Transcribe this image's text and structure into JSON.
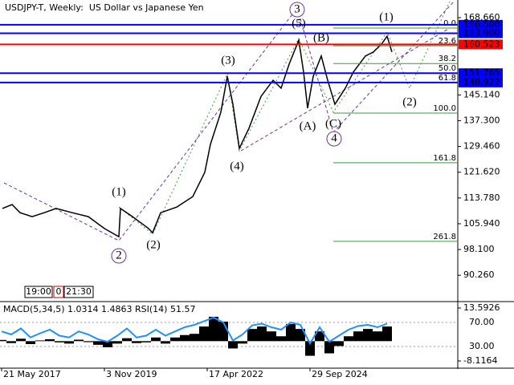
{
  "chart_data": [
    {
      "type": "line",
      "title": "USDJPY-T, Weekly:  US Dollar vs Japanese Yen",
      "x": [
        1,
        13,
        23,
        38,
        53,
        68,
        88,
        108,
        128,
        146,
        148,
        163,
        183,
        188,
        198,
        218,
        238,
        253,
        260,
        273,
        281,
        288,
        296,
        308,
        323,
        338,
        348,
        358,
        370,
        376,
        381,
        388,
        398,
        406,
        415,
        428,
        438,
        453,
        463,
        473,
        480,
        486
      ],
      "series": [
        {
          "color": "#000000",
          "values": [
            110.6,
            111.8,
            109.3,
            108.1,
            109.3,
            110.6,
            109.3,
            108.1,
            104.5,
            102.0,
            110.6,
            108.1,
            104.5,
            103.2,
            109.3,
            111.0,
            114.2,
            121.6,
            130.1,
            139.9,
            150.8,
            142.3,
            128.9,
            135.0,
            144.7,
            149.6,
            147.2,
            154.5,
            161.8,
            152.1,
            141.1,
            150.8,
            157.0,
            149.6,
            142.3,
            147.2,
            152.1,
            157.0,
            158.2,
            160.6,
            163.0,
            158.2
          ]
        }
      ],
      "xlim": [
        -2,
        568
      ],
      "ylim": [
        82.5,
        173.54
      ],
      "yticks": [
        {
          "value": 168.66,
          "label": "168.660"
        },
        {
          "value": 145.14,
          "label": "145.140"
        },
        {
          "value": 137.3,
          "label": "137.300"
        },
        {
          "value": 129.46,
          "label": "129.460"
        },
        {
          "value": 121.62,
          "label": "121.620"
        },
        {
          "value": 113.78,
          "label": "113.780"
        },
        {
          "value": 105.94,
          "label": "105.940"
        },
        {
          "value": 98.1,
          "label": "98.100"
        },
        {
          "value": 90.26,
          "label": "90.260"
        }
      ],
      "levels": [
        {
          "value": 166.5,
          "label": "166.500",
          "color": "#0000ff"
        },
        {
          "value": 163.9,
          "label": "163.900",
          "color": "#0000ff"
        },
        {
          "value": 160.523,
          "label": "160.523",
          "color": "#ff0000"
        },
        {
          "value": 151.765,
          "label": "151.765",
          "color": "#0000ff"
        },
        {
          "value": 148.922,
          "label": "148.922",
          "color": "#0000ff"
        }
      ],
      "fib_levels": [
        {
          "name": "0.0",
          "value": 165.5
        },
        {
          "name": "23.6",
          "value": 160.1
        },
        {
          "name": "38.2",
          "value": 154.7
        },
        {
          "name": "50.0",
          "value": 151.8
        },
        {
          "name": "61.8",
          "value": 148.9
        },
        {
          "name": "100.0",
          "value": 139.6
        },
        {
          "name": "161.8",
          "value": 124.5
        },
        {
          "name": "261.8",
          "value": 100.6
        }
      ],
      "fib_color": "#3c9a3c",
      "wave_labels": [
        {
          "text": "3",
          "style": "circle"
        },
        {
          "text": "(5)",
          "style": "plain"
        },
        {
          "text": "(1)",
          "style": "plain"
        },
        {
          "text": "(B)",
          "style": "plain"
        },
        {
          "text": "(3)",
          "style": "plain"
        },
        {
          "text": "(A)",
          "style": "plain"
        },
        {
          "text": "(C)",
          "style": "plain"
        },
        {
          "text": "4",
          "style": "circle"
        },
        {
          "text": "(4)",
          "style": "plain"
        },
        {
          "text": "(1)",
          "style": "plain"
        },
        {
          "text": "2",
          "style": "circle"
        },
        {
          "text": "(2)",
          "style": "plain"
        },
        {
          "text": "(2)",
          "style": "plain"
        }
      ],
      "time_boxes": [
        "19:00",
        "0",
        "21:30"
      ]
    },
    {
      "type": "line",
      "title": "MACD(5,34,5) 1.0314 1.4863 RSI(14) 51.57",
      "x": [
        0,
        12,
        24,
        36,
        48,
        60,
        72,
        84,
        96,
        108,
        120,
        132,
        144,
        156,
        168,
        180,
        192,
        204,
        216,
        228,
        240,
        252,
        264,
        276,
        288,
        300,
        312,
        324,
        336,
        348,
        360,
        372,
        384,
        396,
        408,
        420,
        432,
        444,
        456,
        468,
        480
      ],
      "series": [
        {
          "type": "bar",
          "color": "#000000",
          "values": [
            0.5,
            -0.8,
            1.0,
            -1.2,
            0.3,
            0.8,
            -0.5,
            -1.0,
            0.6,
            -0.4,
            -1.5,
            -2.5,
            -1.0,
            1.2,
            -0.8,
            -0.5,
            1.5,
            -1.0,
            1.5,
            2.5,
            3,
            6,
            10,
            8,
            -3,
            -1,
            5,
            6,
            4,
            2,
            7,
            5,
            -6,
            4,
            -5,
            -2,
            2,
            4,
            5,
            4,
            6
          ]
        },
        {
          "type": "line",
          "axis": "y2",
          "color": "#1e90ff",
          "values": [
            55,
            50,
            60,
            45,
            52,
            58,
            48,
            45,
            55,
            50,
            42,
            38,
            48,
            60,
            45,
            48,
            58,
            48,
            55,
            62,
            66,
            72,
            78,
            70,
            40,
            50,
            65,
            68,
            62,
            58,
            70,
            66,
            35,
            62,
            38,
            48,
            58,
            64,
            66,
            62,
            68
          ]
        }
      ],
      "xlim": [
        -2,
        568
      ],
      "xticks": [
        {
          "value": 0,
          "label": "21 May 2017"
        },
        {
          "value": 128,
          "label": "3 Nov 2019"
        },
        {
          "value": 256,
          "label": "17 Apr 2022"
        },
        {
          "value": 384,
          "label": "29 Sep 2024"
        }
      ],
      "ylim": [
        -10.75,
        15.57
      ],
      "yticks": [
        13.5926,
        -8.1164
      ],
      "y2lim": [
        -4.67,
        102
      ],
      "y2ticks": [
        {
          "value": 70,
          "label": "70.00"
        },
        {
          "value": 30,
          "label": "30.00"
        }
      ]
    }
  ]
}
